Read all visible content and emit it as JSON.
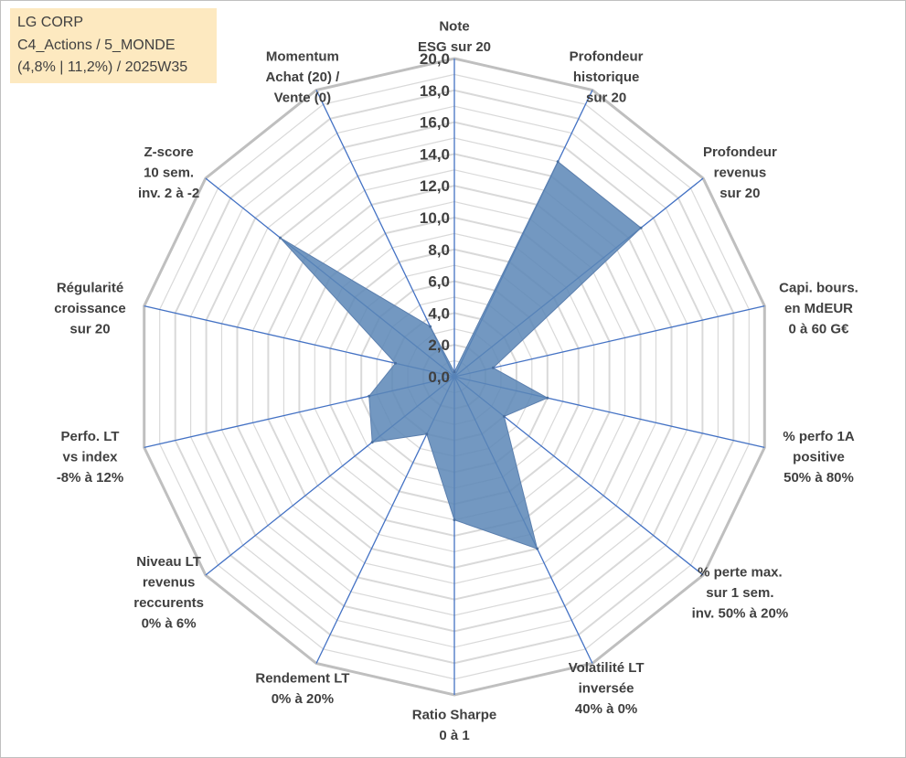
{
  "info_box": {
    "line1": "LG CORP",
    "line2": "C4_Actions / 5_MONDE",
    "line3": "(4,8% | 11,2%) / 2025W35"
  },
  "chart_data": {
    "type": "radar",
    "title": "",
    "rlim": [
      0,
      20
    ],
    "tick_values": [
      0,
      2,
      4,
      6,
      8,
      10,
      12,
      14,
      16,
      18,
      20
    ],
    "tick_labels": [
      "0,0",
      "2,0",
      "4,0",
      "6,0",
      "8,0",
      "10,0",
      "12,0",
      "14,0",
      "16,0",
      "18,0",
      "20,0"
    ],
    "grid": true,
    "legend": "none",
    "fill_color": "#5b86b6",
    "line_color": "#4472c4",
    "grid_color": "#d9d9d9",
    "outer_grid_color": "#bfbfbf",
    "axes": [
      {
        "name": "ESG",
        "label_lines": [
          "Note",
          "ESG sur 20"
        ],
        "value": 0.3
      },
      {
        "name": "Profondeur historique",
        "label_lines": [
          "Profondeur",
          "historique",
          "sur 20"
        ],
        "value": 15.0
      },
      {
        "name": "Profondeur revenus",
        "label_lines": [
          "Profondeur",
          "revenus",
          "sur 20"
        ],
        "value": 15.0
      },
      {
        "name": "Capi. bours.",
        "label_lines": [
          "Capi. bours.",
          "en MdEUR",
          "0 à 60 G€"
        ],
        "value": 2.5
      },
      {
        "name": "% perfo 1A positive",
        "label_lines": [
          "% perfo 1A",
          "positive",
          "50% à 80%"
        ],
        "value": 6.0
      },
      {
        "name": "% perte max.",
        "label_lines": [
          "% perte max.",
          "sur 1 sem.",
          "inv. 50% à 20%"
        ],
        "value": 4.0
      },
      {
        "name": "Volatilité LT inversée",
        "label_lines": [
          "Volatilité LT",
          "inversée",
          "40% à 0%"
        ],
        "value": 12.0
      },
      {
        "name": "Ratio Sharpe",
        "label_lines": [
          "Ratio Sharpe",
          "0 à 1"
        ],
        "value": 9.0
      },
      {
        "name": "Rendement LT",
        "label_lines": [
          "Rendement LT",
          "0% à 20%"
        ],
        "value": 4.0
      },
      {
        "name": "Niveau LT revenus reccurents",
        "label_lines": [
          "Niveau LT",
          "revenus",
          "reccurents",
          "0% à 6%"
        ],
        "value": 6.6
      },
      {
        "name": "Perfo. LT vs index",
        "label_lines": [
          "Perfo. LT",
          "vs index",
          "-8% à 12%"
        ],
        "value": 5.5
      },
      {
        "name": "Régularité croissance",
        "label_lines": [
          "Régularité",
          "croissance",
          "sur 20"
        ],
        "value": 3.8
      },
      {
        "name": "Z-score",
        "label_lines": [
          "Z-score",
          "10 sem.",
          "inv. 2 à -2"
        ],
        "value": 14.0
      },
      {
        "name": "Momentum",
        "label_lines": [
          "Momentum",
          "Achat (20) /",
          "Vente (0)"
        ],
        "value": 3.5
      }
    ]
  }
}
